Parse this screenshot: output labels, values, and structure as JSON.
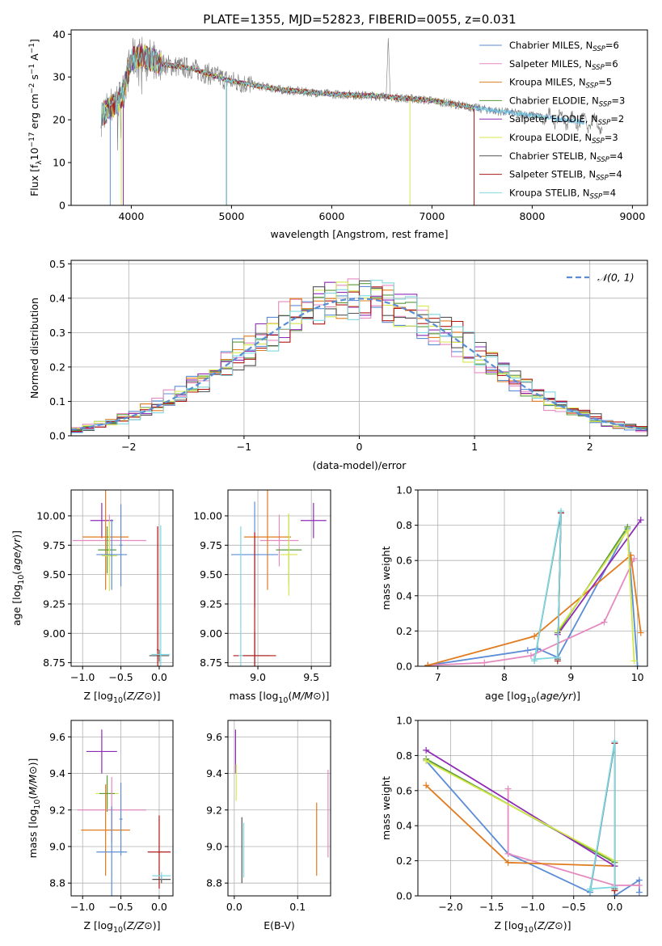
{
  "figure": {
    "title": "PLATE=1355, MJD=52823, FIBERID=0055, z=0.031"
  },
  "colors": {
    "chabrier_miles": "#5b8dd6",
    "salpeter_miles": "#e58ac0",
    "kroupa_miles": "#e07b1e",
    "chabrier_elodie": "#5a9a3a",
    "salpeter_elodie": "#8e2bb5",
    "kroupa_elodie": "#d4e84a",
    "chabrier_stelib": "#555555",
    "salpeter_stelib": "#b01818",
    "kroupa_stelib": "#7fd8e0"
  },
  "chart_data": [
    {
      "id": "spectrum",
      "type": "line",
      "xlabel": "wavelength [Angstrom, rest frame]",
      "ylabel": "Flux [f_λ 10^-17 erg cm^-2 s^-1 A^-1]",
      "xlim": [
        3400,
        9150
      ],
      "ylim": [
        0,
        41
      ],
      "xticks": [
        4000,
        5000,
        6000,
        7000,
        8000,
        9000
      ],
      "yticks": [
        0,
        10,
        20,
        30,
        40
      ],
      "grid": false,
      "legend": "top-right",
      "series": [
        {
          "name": "Chabrier MILES, N_SSP=6",
          "key": "chabrier_miles"
        },
        {
          "name": "Salpeter MILES, N_SSP=6",
          "key": "salpeter_miles"
        },
        {
          "name": "Kroupa MILES, N_SSP=5",
          "key": "kroupa_miles"
        },
        {
          "name": "Chabrier ELODIE, N_SSP=3",
          "key": "chabrier_elodie"
        },
        {
          "name": "Salpeter ELODIE, N_SSP=2",
          "key": "salpeter_elodie"
        },
        {
          "name": "Kroupa ELODIE, N_SSP=3",
          "key": "kroupa_elodie"
        },
        {
          "name": "Chabrier STELIB, N_SSP=4",
          "key": "chabrier_stelib"
        },
        {
          "name": "Salpeter STELIB, N_SSP=4",
          "key": "salpeter_stelib"
        },
        {
          "name": "Kroupa STELIB, N_SSP=4",
          "key": "kroupa_stelib"
        }
      ],
      "continuum": {
        "x": [
          3700,
          3900,
          4000,
          4100,
          4300,
          4600,
          5000,
          5500,
          6000,
          6500,
          7000,
          7500,
          8000,
          8500,
          9000
        ],
        "y": [
          21,
          25,
          34,
          35,
          33,
          32,
          29,
          27,
          26,
          25.5,
          24.5,
          22.5,
          21,
          19.5,
          18
        ]
      },
      "data_extent": {
        "model_end": 7420,
        "data_end": 8700
      }
    },
    {
      "id": "residuals",
      "type": "histogram",
      "xlabel": "(data-model)/error",
      "ylabel": "Normed distribution",
      "xlim": [
        -2.5,
        2.5
      ],
      "ylim": [
        0,
        0.51
      ],
      "xticks": [
        -2,
        -1,
        0,
        1,
        2
      ],
      "yticks": [
        0.0,
        0.1,
        0.2,
        0.3,
        0.4,
        0.5
      ],
      "grid": true,
      "legend": "top-right",
      "legend_label": "𝒩(0, 1)",
      "bin_width": 0.1
    },
    {
      "id": "age_vs_Z",
      "type": "scatter",
      "xlabel": "Z [log10(Z/Z⊙)]",
      "ylabel": "age  [log10(age/yr)]",
      "xlim": [
        -1.15,
        0.18
      ],
      "ylim": [
        8.72,
        10.22
      ],
      "xticks": [
        -1.0,
        -0.5,
        0.0
      ],
      "yticks": [
        8.75,
        9.0,
        9.25,
        9.5,
        9.75,
        10.0
      ],
      "grid": true,
      "points": [
        {
          "key": "salpeter_elodie",
          "x": -0.75,
          "y": 9.96,
          "xerr": 0.15,
          "yerr": 0.15
        },
        {
          "key": "salpeter_miles",
          "x": -0.65,
          "y": 9.79,
          "xerr": 0.48,
          "yerr": 0.22
        },
        {
          "key": "kroupa_miles",
          "x": -0.7,
          "y": 9.82,
          "xerr": 0.3,
          "yerr": 0.45
        },
        {
          "key": "chabrier_elodie",
          "x": -0.68,
          "y": 9.71,
          "xerr": 0.12,
          "yerr": 0.2
        },
        {
          "key": "kroupa_elodie",
          "x": -0.65,
          "y": 9.66,
          "xerr": 0.1,
          "yerr": 0.3
        },
        {
          "key": "chabrier_miles",
          "x": -0.62,
          "y": 9.67,
          "xerr": 0.2,
          "yerr": 0.3
        },
        {
          "key": "chabrier_miles",
          "x": -0.5,
          "y": 9.75,
          "xerr": 0.02,
          "yerr": 0.35
        },
        {
          "key": "chabrier_stelib",
          "x": 0.0,
          "y": 8.81,
          "xerr": 0.13,
          "yerr": 0.05
        },
        {
          "key": "salpeter_stelib",
          "x": -0.02,
          "y": 8.86,
          "xerr": 0.01,
          "yerr": 1.05
        },
        {
          "key": "kroupa_stelib",
          "x": 0.02,
          "y": 8.82,
          "xerr": 0.12,
          "yerr": 1.1
        }
      ]
    },
    {
      "id": "age_vs_mass",
      "type": "scatter",
      "xlabel": "mass [log10(M/M⊙)]",
      "ylabel": "",
      "xlim": [
        8.72,
        9.68
      ],
      "ylim": [
        8.72,
        10.22
      ],
      "xticks": [
        9.0,
        9.5
      ],
      "yticks": [
        8.75,
        9.0,
        9.25,
        9.5,
        9.75,
        10.0
      ],
      "grid": true,
      "points": [
        {
          "key": "salpeter_elodie",
          "x": 9.52,
          "y": 9.96,
          "xerr": 0.12,
          "yerr": 0.15
        },
        {
          "key": "salpeter_miles",
          "x": 9.2,
          "y": 9.79,
          "xerr": 0.18,
          "yerr": 0.22
        },
        {
          "key": "kroupa_miles",
          "x": 9.09,
          "y": 9.82,
          "xerr": 0.22,
          "yerr": 0.45
        },
        {
          "key": "chabrier_elodie",
          "x": 9.29,
          "y": 9.71,
          "xerr": 0.12,
          "yerr": 0.3
        },
        {
          "key": "kroupa_elodie",
          "x": 9.29,
          "y": 9.67,
          "xerr": 0.08,
          "yerr": 0.35
        },
        {
          "key": "chabrier_miles",
          "x": 8.97,
          "y": 9.67,
          "xerr": 0.22,
          "yerr": 0.45
        },
        {
          "key": "chabrier_stelib",
          "x": 8.97,
          "y": 8.81,
          "xerr": 0.14,
          "yerr": 0.2
        },
        {
          "key": "salpeter_stelib",
          "x": 8.97,
          "y": 8.81,
          "xerr": 0.2,
          "yerr": 1.05
        },
        {
          "key": "kroupa_stelib",
          "x": 8.84,
          "y": 8.81,
          "xerr": 0.02,
          "yerr": 1.1
        }
      ]
    },
    {
      "id": "weight_vs_age",
      "type": "line",
      "xlabel": "age  [log10(age/yr)]",
      "ylabel": "mass weight",
      "xlim": [
        6.7,
        10.15
      ],
      "ylim": [
        0,
        1.0
      ],
      "xticks": [
        7,
        8,
        9,
        10
      ],
      "yticks": [
        0.0,
        0.2,
        0.4,
        0.6,
        0.8,
        1.0
      ],
      "grid": true,
      "series": [
        {
          "key": "chabrier_miles",
          "x": [
            6.85,
            8.35,
            8.5,
            8.8,
            9.85,
            10.0
          ],
          "y": [
            0.005,
            0.09,
            0.1,
            0.05,
            0.78,
            0.0
          ]
        },
        {
          "key": "salpeter_miles",
          "x": [
            6.85,
            7.7,
            8.4,
            9.5,
            9.95
          ],
          "y": [
            0.005,
            0.02,
            0.06,
            0.25,
            0.61
          ]
        },
        {
          "key": "kroupa_miles",
          "x": [
            6.85,
            8.45,
            9.9,
            10.05
          ],
          "y": [
            0.005,
            0.17,
            0.63,
            0.19
          ]
        },
        {
          "key": "chabrier_elodie",
          "x": [
            8.8,
            9.85
          ],
          "y": [
            0.19,
            0.79
          ]
        },
        {
          "key": "salpeter_elodie",
          "x": [
            8.8,
            10.05
          ],
          "y": [
            0.18,
            0.83
          ]
        },
        {
          "key": "kroupa_elodie",
          "x": [
            8.8,
            9.85,
            9.95
          ],
          "y": [
            0.2,
            0.77,
            0.03
          ]
        },
        {
          "key": "chabrier_stelib",
          "x": [
            8.45,
            8.85,
            8.8
          ],
          "y": [
            0.03,
            0.87,
            0.04
          ]
        },
        {
          "key": "salpeter_stelib",
          "x": [
            8.85,
            8.8
          ],
          "y": [
            0.87,
            0.03
          ]
        },
        {
          "key": "kroupa_stelib",
          "x": [
            8.45,
            8.85,
            8.8,
            8.45
          ],
          "y": [
            0.03,
            0.88,
            0.05,
            0.04
          ]
        }
      ]
    },
    {
      "id": "mass_vs_Z",
      "type": "scatter",
      "xlabel": "Z [log10(Z/Z⊙)]",
      "ylabel": "mass [log10(M/M⊙)]",
      "xlim": [
        -1.15,
        0.18
      ],
      "ylim": [
        8.73,
        9.69
      ],
      "xticks": [
        -1.0,
        -0.5,
        0.0
      ],
      "yticks": [
        8.8,
        9.0,
        9.2,
        9.4,
        9.6
      ],
      "grid": true,
      "points": [
        {
          "key": "salpeter_elodie",
          "x": -0.75,
          "y": 9.52,
          "xerr": 0.2,
          "yerr": 0.12
        },
        {
          "key": "kroupa_elodie",
          "x": -0.68,
          "y": 9.29,
          "xerr": 0.15,
          "yerr": 0.08
        },
        {
          "key": "chabrier_elodie",
          "x": -0.68,
          "y": 9.29,
          "xerr": 0.1,
          "yerr": 0.1
        },
        {
          "key": "salpeter_miles",
          "x": -0.62,
          "y": 9.2,
          "xerr": 0.45,
          "yerr": 0.18
        },
        {
          "key": "kroupa_miles",
          "x": -0.7,
          "y": 9.09,
          "xerr": 0.32,
          "yerr": 0.25
        },
        {
          "key": "chabrier_miles",
          "x": -0.62,
          "y": 8.97,
          "xerr": 0.2,
          "yerr": 0.25
        },
        {
          "key": "chabrier_miles",
          "x": -0.5,
          "y": 9.15,
          "xerr": 0.02,
          "yerr": 0.2
        },
        {
          "key": "salpeter_stelib",
          "x": 0.0,
          "y": 8.97,
          "xerr": 0.15,
          "yerr": 0.2
        },
        {
          "key": "chabrier_stelib",
          "x": 0.03,
          "y": 8.82,
          "xerr": 0.12,
          "yerr": 0.02
        },
        {
          "key": "kroupa_stelib",
          "x": 0.03,
          "y": 8.84,
          "xerr": 0.12,
          "yerr": 0.02
        }
      ]
    },
    {
      "id": "mass_vs_ebv",
      "type": "scatter",
      "xlabel": "E(B-V)",
      "ylabel": "",
      "xlim": [
        -0.01,
        0.152
      ],
      "ylim": [
        8.73,
        9.69
      ],
      "xticks": [
        0.0,
        0.1
      ],
      "yticks": [
        8.8,
        9.0,
        9.2,
        9.4,
        9.6
      ],
      "grid": true,
      "points": [
        {
          "key": "salpeter_elodie",
          "x": 0.002,
          "y": 9.52,
          "xerr": 0.0,
          "yerr": 0.12
        },
        {
          "key": "kroupa_elodie",
          "x": 0.003,
          "y": 9.35,
          "xerr": 0.0,
          "yerr": 0.1
        },
        {
          "key": "chabrier_stelib",
          "x": 0.012,
          "y": 8.98,
          "xerr": 0.0,
          "yerr": 0.18
        },
        {
          "key": "kroupa_stelib",
          "x": 0.015,
          "y": 8.98,
          "xerr": 0.0,
          "yerr": 0.15
        },
        {
          "key": "kroupa_miles",
          "x": 0.13,
          "y": 9.04,
          "xerr": 0.0,
          "yerr": 0.2
        },
        {
          "key": "salpeter_miles",
          "x": 0.148,
          "y": 9.18,
          "xerr": 0.0,
          "yerr": 0.24
        }
      ]
    },
    {
      "id": "weight_vs_Z",
      "type": "line",
      "xlabel": "Z [log10(Z/Z⊙)]",
      "ylabel": "mass weight",
      "xlim": [
        -2.4,
        0.4
      ],
      "ylim": [
        0,
        1.0
      ],
      "xticks": [
        -2.0,
        -1.5,
        -1.0,
        -0.5,
        0.0
      ],
      "yticks": [
        0.0,
        0.2,
        0.4,
        0.6,
        0.8,
        1.0
      ],
      "grid": true,
      "series": [
        {
          "key": "chabrier_miles",
          "x": [
            -2.3,
            -1.3,
            -0.3,
            0.0,
            0.0,
            0.3,
            0.3
          ],
          "y": [
            0.77,
            0.24,
            0.02,
            0.87,
            0.0,
            0.09,
            0.02
          ]
        },
        {
          "key": "salpeter_miles",
          "x": [
            -1.3,
            -1.3,
            0.0,
            0.3
          ],
          "y": [
            0.61,
            0.24,
            0.06,
            0.06
          ]
        },
        {
          "key": "kroupa_miles",
          "x": [
            -2.3,
            -1.3,
            0.0
          ],
          "y": [
            0.63,
            0.19,
            0.17
          ]
        },
        {
          "key": "chabrier_elodie",
          "x": [
            -2.3,
            0.0
          ],
          "y": [
            0.78,
            0.19
          ]
        },
        {
          "key": "salpeter_elodie",
          "x": [
            -2.3,
            0.0
          ],
          "y": [
            0.83,
            0.17
          ]
        },
        {
          "key": "kroupa_elodie",
          "x": [
            -2.3,
            0.0,
            0.0
          ],
          "y": [
            0.77,
            0.2,
            0.03
          ]
        },
        {
          "key": "chabrier_stelib",
          "x": [
            -0.3,
            0.0,
            0.0
          ],
          "y": [
            0.03,
            0.87,
            0.04
          ]
        },
        {
          "key": "salpeter_stelib",
          "x": [
            0.0,
            0.0
          ],
          "y": [
            0.87,
            0.03
          ]
        },
        {
          "key": "kroupa_stelib",
          "x": [
            -0.3,
            0.0,
            0.0,
            -0.3
          ],
          "y": [
            0.03,
            0.88,
            0.05,
            0.04
          ]
        }
      ]
    }
  ]
}
